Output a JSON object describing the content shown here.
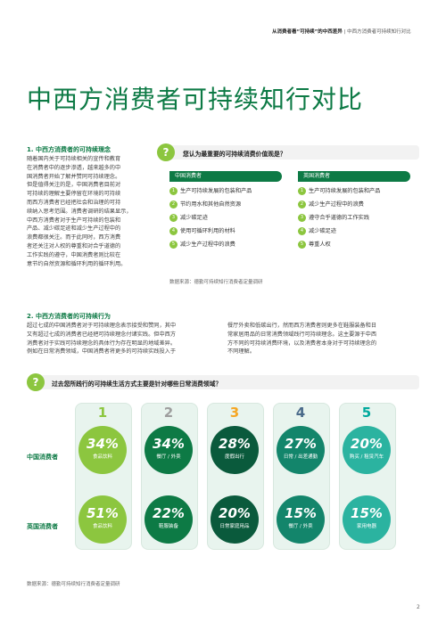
{
  "header": {
    "bold": "从消费者看“可持续”的中西差异",
    "rest": " | 中西方消费者可持续知行对比"
  },
  "title": "中西方消费者可持续知行对比",
  "section1": {
    "heading": "1. 中西方消费者的可持续理念",
    "text": "随着国内关于可持续相关的宣传和教育\n在消费者中的逐步渗透，越来越多的中\n国消费者开始了解并赞同可持续理念。\n但是值得关注的是，中国消费者目前对\n可持续的理解主要停留在环境的可持续\n而西方消费者已经把社会和治理的可持\n续纳入思考范围。消费者调研的结果显示，\n中西方消费者对于生产可持续的包装和\n产品、减少碳足迹和减少生产过程中的\n浪费都很关注。而于此同时，西方消费\n者还关注对人权的尊重和对合乎道德的\n工作实践的遵守，中国消费者则比较在\n意节约自然资源和循环利用的循环利用。"
  },
  "question1": {
    "icon": "?",
    "text": "您认为最重要的可持续消费价值观是？",
    "china_tag": "中国消费者",
    "west_tag": "英国消费者",
    "china_items": [
      "生产可持续发展的包装和产品",
      "节约用水和其他自然资源",
      "减少碳足迹",
      "使用可循环利用的材料",
      "减少生产过程中的浪费"
    ],
    "west_items": [
      "生产可持续发展的包装和产品",
      "减少生产过程中的浪费",
      "遵守合乎道德的工作实践",
      "减少碳足迹",
      "尊重人权"
    ],
    "source": "数据来源：德勤可持续知行消费者定量调研"
  },
  "section2": {
    "heading": "2. 中西方消费者的可持续行为",
    "left_text": "超过七成的中国消费者对于可持续理念表示接受和赞同，其中\n又有超过七成的消费者已经把可持续理念付诸实践。但中西方\n消费者对于实践可持续理念的具体行为存在明显的地域差异。\n例如在日常消费领域，中国消费者将更多的可持续实践投入于",
    "right_text": "餐厅外卖和低碳出行，然而西方消费者则更多在鞋服装备和日\n常家居用品的日常消费领域践行可持续理念。这主要源于中西\n方不同的可持续消费环境，以及消费者本身对于可持续理念的\n不同理解。"
  },
  "question2": {
    "icon": "?",
    "text": "过去您所践行的可持续生活方式主要是针对哪些日常消费领域？"
  },
  "ranks": [
    "1",
    "2",
    "3",
    "4",
    "5"
  ],
  "row_labels": {
    "china": "中国消费者",
    "west": "英国消费者"
  },
  "china_row": [
    {
      "pct": "34%",
      "label": "食品饮料"
    },
    {
      "pct": "34%",
      "label": "餐厅 / 外卖"
    },
    {
      "pct": "28%",
      "label": "度假出行"
    },
    {
      "pct": "27%",
      "label": "日常 / 出差通勤"
    },
    {
      "pct": "20%",
      "label": "购买 / 租赁汽车"
    }
  ],
  "west_row": [
    {
      "pct": "51%",
      "label": "食品饮料"
    },
    {
      "pct": "22%",
      "label": "鞋服装备"
    },
    {
      "pct": "20%",
      "label": "日常家庭用品"
    },
    {
      "pct": "15%",
      "label": "餐厅 / 外卖"
    },
    {
      "pct": "15%",
      "label": "家用电器"
    }
  ],
  "source2": "数据来源：德勤可持续知行消费者定量调研",
  "page_number": "2",
  "colors": {
    "green": "#0d7a45",
    "lime": "#8cc63f",
    "rank1": "#8cc63f",
    "rank2": "#9e9e9e",
    "rank3": "#f5a623",
    "rank4": "#4a6a8a",
    "rank5": "#00a99d"
  }
}
